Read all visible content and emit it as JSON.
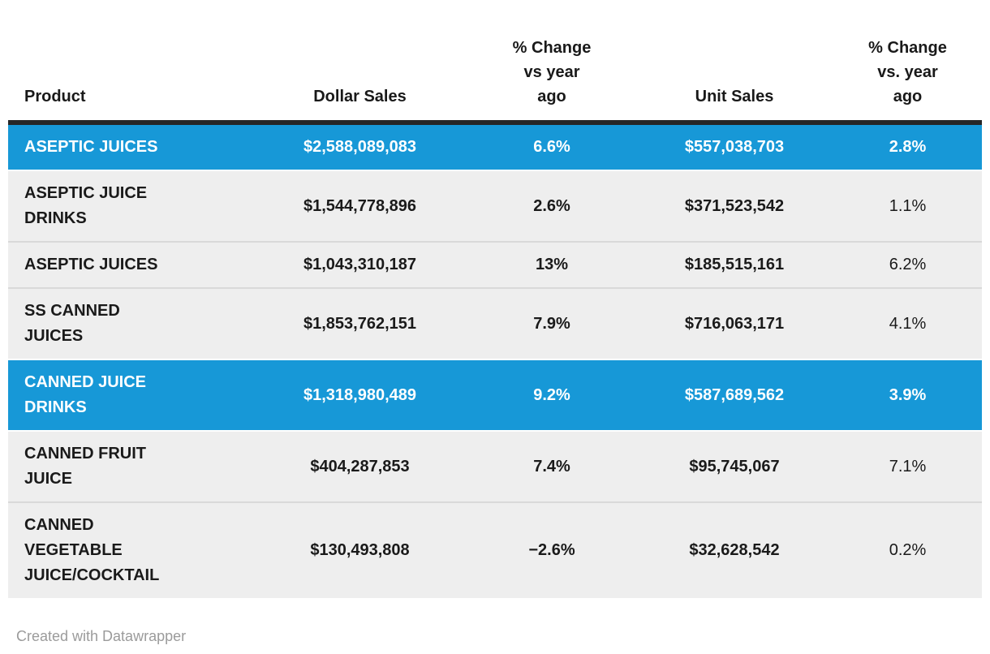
{
  "chart_data": {
    "type": "table",
    "columns": [
      "Product",
      "Dollar Sales",
      "% Change\nvs year\nago",
      "Unit Sales",
      "% Change\nvs. year\nago"
    ],
    "rows": [
      [
        "ASEPTIC JUICES",
        "$2,588,089,083",
        "6.6%",
        "$557,038,703",
        "2.8%"
      ],
      [
        "ASEPTIC JUICE\nDRINKS",
        "$1,544,778,896",
        "2.6%",
        "$371,523,542",
        "1.1%"
      ],
      [
        "ASEPTIC JUICES",
        "$1,043,310,187",
        "13%",
        "$185,515,161",
        "6.2%"
      ],
      [
        "SS CANNED\nJUICES",
        "$1,853,762,151",
        "7.9%",
        "$716,063,171",
        "4.1%"
      ],
      [
        "CANNED JUICE\nDRINKS",
        "$1,318,980,489",
        "9.2%",
        "$587,689,562",
        "3.9%"
      ],
      [
        "CANNED FRUIT\nJUICE",
        "$404,287,853",
        "7.4%",
        "$95,745,067",
        "7.1%"
      ],
      [
        "CANNED\nVEGETABLE\nJUICE/COCKTAIL",
        "$130,493,808",
        "−2.6%",
        "$32,628,542",
        "0.2%"
      ]
    ],
    "highlighted_rows": [
      0,
      4
    ],
    "legend_position": "none",
    "grid": "row-dividers"
  },
  "colors": {
    "highlight_row_bg": "#1798d7",
    "row_bg": "#eeeeee",
    "header_rule": "#262626",
    "row_divider": "#d9d9d9",
    "text": "#1a1a1a",
    "highlight_text": "#ffffff",
    "credit_text": "#9b9b9b"
  },
  "footer": {
    "credit": "Created with Datawrapper"
  }
}
